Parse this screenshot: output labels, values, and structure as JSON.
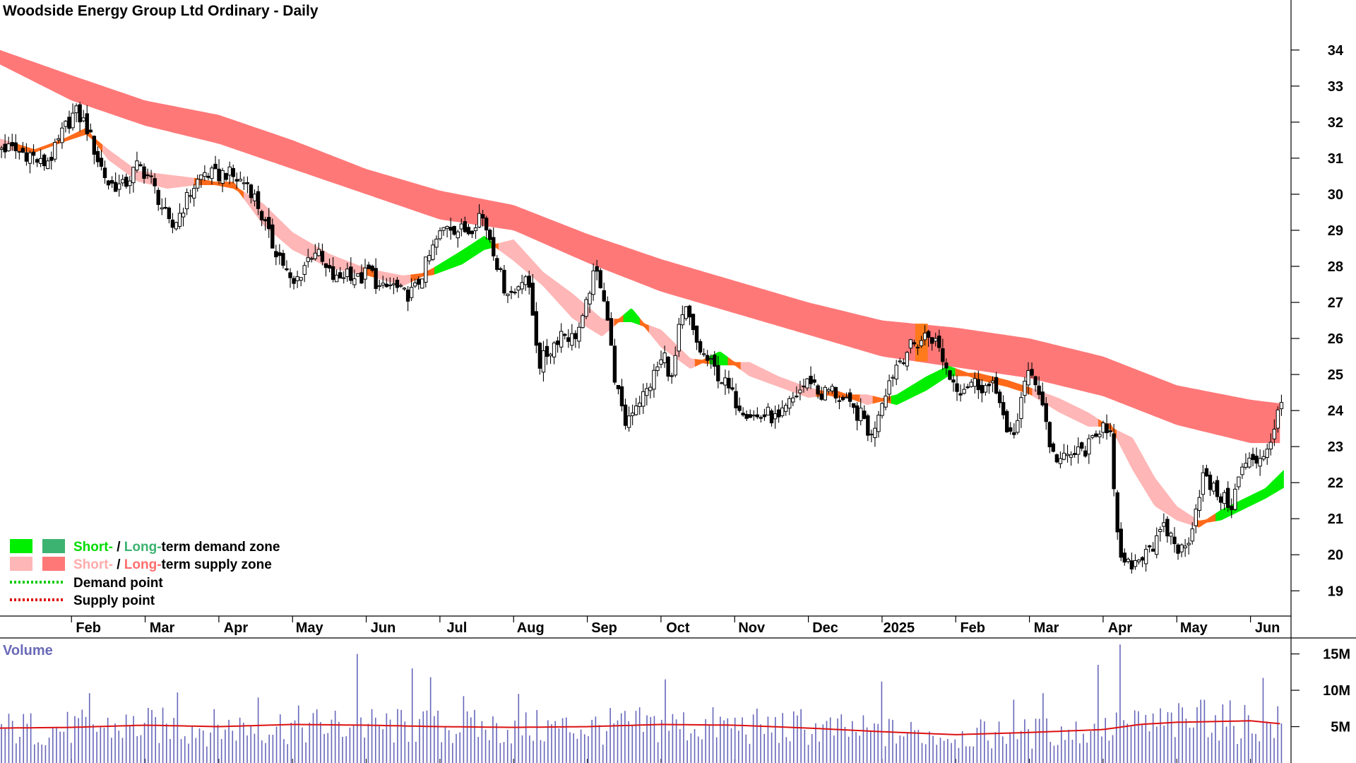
{
  "chart_data": {
    "type": "candlestick",
    "title": "Woodside Energy Group Ltd Ordinary - Daily",
    "y_ticks": [
      19,
      20,
      21,
      22,
      23,
      24,
      25,
      26,
      27,
      28,
      29,
      30,
      31,
      32,
      33,
      34
    ],
    "ylim": [
      18.3,
      34.8
    ],
    "x_ticks": [
      "Feb",
      "Mar",
      "Apr",
      "May",
      "Jun",
      "Jul",
      "Aug",
      "Sep",
      "Oct",
      "Nov",
      "Dec",
      "2025",
      "Feb",
      "Mar",
      "Apr",
      "May",
      "Jun"
    ],
    "x_tick_months": [
      1,
      2,
      3,
      4,
      5,
      6,
      7,
      8,
      9,
      10,
      11,
      12,
      13,
      14,
      15,
      16,
      17
    ],
    "xlim_months": [
      0.03,
      17.55
    ],
    "price_series": [
      {
        "m": 0.05,
        "c": 31.3
      },
      {
        "m": 0.25,
        "c": 31.2
      },
      {
        "m": 0.45,
        "c": 31.1
      },
      {
        "m": 0.6,
        "c": 30.8
      },
      {
        "m": 0.75,
        "c": 31.1
      },
      {
        "m": 0.9,
        "c": 31.8
      },
      {
        "m": 1.05,
        "c": 32.3
      },
      {
        "m": 1.2,
        "c": 31.9
      },
      {
        "m": 1.35,
        "c": 31.0
      },
      {
        "m": 1.5,
        "c": 30.3
      },
      {
        "m": 1.7,
        "c": 30.2
      },
      {
        "m": 1.9,
        "c": 30.8
      },
      {
        "m": 2.05,
        "c": 30.5
      },
      {
        "m": 2.2,
        "c": 29.8
      },
      {
        "m": 2.35,
        "c": 29.0
      },
      {
        "m": 2.5,
        "c": 29.6
      },
      {
        "m": 2.65,
        "c": 30.2
      },
      {
        "m": 2.8,
        "c": 30.6
      },
      {
        "m": 2.95,
        "c": 30.5
      },
      {
        "m": 3.1,
        "c": 30.6
      },
      {
        "m": 3.25,
        "c": 30.4
      },
      {
        "m": 3.4,
        "c": 30.3
      },
      {
        "m": 3.55,
        "c": 29.6
      },
      {
        "m": 3.7,
        "c": 28.7
      },
      {
        "m": 3.85,
        "c": 28.2
      },
      {
        "m": 4.0,
        "c": 27.4
      },
      {
        "m": 4.15,
        "c": 28.0
      },
      {
        "m": 4.3,
        "c": 28.5
      },
      {
        "m": 4.45,
        "c": 27.9
      },
      {
        "m": 4.6,
        "c": 27.6
      },
      {
        "m": 4.75,
        "c": 27.9
      },
      {
        "m": 4.9,
        "c": 27.6
      },
      {
        "m": 5.05,
        "c": 27.9
      },
      {
        "m": 5.2,
        "c": 27.3
      },
      {
        "m": 5.35,
        "c": 27.5
      },
      {
        "m": 5.5,
        "c": 27.2
      },
      {
        "m": 5.65,
        "c": 27.3
      },
      {
        "m": 5.8,
        "c": 28.0
      },
      {
        "m": 5.95,
        "c": 28.7
      },
      {
        "m": 6.1,
        "c": 29.2
      },
      {
        "m": 6.25,
        "c": 29.0
      },
      {
        "m": 6.4,
        "c": 29.0
      },
      {
        "m": 6.55,
        "c": 29.5
      },
      {
        "m": 6.7,
        "c": 28.7
      },
      {
        "m": 6.85,
        "c": 27.5
      },
      {
        "m": 7.0,
        "c": 27.2
      },
      {
        "m": 7.15,
        "c": 27.9
      },
      {
        "m": 7.25,
        "c": 26.8
      },
      {
        "m": 7.35,
        "c": 25.3
      },
      {
        "m": 7.5,
        "c": 25.7
      },
      {
        "m": 7.65,
        "c": 26.2
      },
      {
        "m": 7.8,
        "c": 26.0
      },
      {
        "m": 7.95,
        "c": 26.5
      },
      {
        "m": 8.05,
        "c": 27.6
      },
      {
        "m": 8.15,
        "c": 27.8
      },
      {
        "m": 8.25,
        "c": 27.0
      },
      {
        "m": 8.35,
        "c": 25.2
      },
      {
        "m": 8.5,
        "c": 23.6
      },
      {
        "m": 8.65,
        "c": 24.2
      },
      {
        "m": 8.8,
        "c": 24.5
      },
      {
        "m": 8.95,
        "c": 25.2
      },
      {
        "m": 9.05,
        "c": 25.5
      },
      {
        "m": 9.15,
        "c": 24.8
      },
      {
        "m": 9.25,
        "c": 26.3
      },
      {
        "m": 9.35,
        "c": 26.8
      },
      {
        "m": 9.45,
        "c": 26.0
      },
      {
        "m": 9.55,
        "c": 25.6
      },
      {
        "m": 9.7,
        "c": 25.2
      },
      {
        "m": 9.85,
        "c": 24.8
      },
      {
        "m": 10.0,
        "c": 24.3
      },
      {
        "m": 10.15,
        "c": 24.0
      },
      {
        "m": 10.3,
        "c": 23.8
      },
      {
        "m": 10.45,
        "c": 23.9
      },
      {
        "m": 10.6,
        "c": 23.7
      },
      {
        "m": 10.75,
        "c": 24.2
      },
      {
        "m": 10.9,
        "c": 24.6
      },
      {
        "m": 11.05,
        "c": 24.9
      },
      {
        "m": 11.15,
        "c": 24.4
      },
      {
        "m": 11.3,
        "c": 24.6
      },
      {
        "m": 11.45,
        "c": 24.3
      },
      {
        "m": 11.6,
        "c": 24.0
      },
      {
        "m": 11.75,
        "c": 23.8
      },
      {
        "m": 11.85,
        "c": 23.2
      },
      {
        "m": 11.95,
        "c": 24.0
      },
      {
        "m": 12.05,
        "c": 24.6
      },
      {
        "m": 12.2,
        "c": 25.3
      },
      {
        "m": 12.35,
        "c": 25.7
      },
      {
        "m": 12.5,
        "c": 25.9
      },
      {
        "m": 12.6,
        "c": 26.1
      },
      {
        "m": 12.7,
        "c": 26.0
      },
      {
        "m": 12.8,
        "c": 25.6
      },
      {
        "m": 12.9,
        "c": 25.0
      },
      {
        "m": 13.05,
        "c": 24.6
      },
      {
        "m": 13.2,
        "c": 24.8
      },
      {
        "m": 13.35,
        "c": 24.7
      },
      {
        "m": 13.5,
        "c": 24.6
      },
      {
        "m": 13.6,
        "c": 24.4
      },
      {
        "m": 13.7,
        "c": 23.2
      },
      {
        "m": 13.8,
        "c": 23.3
      },
      {
        "m": 13.9,
        "c": 24.6
      },
      {
        "m": 14.0,
        "c": 25.0
      },
      {
        "m": 14.1,
        "c": 24.8
      },
      {
        "m": 14.2,
        "c": 24.0
      },
      {
        "m": 14.3,
        "c": 22.8
      },
      {
        "m": 14.45,
        "c": 22.6
      },
      {
        "m": 14.6,
        "c": 22.8
      },
      {
        "m": 14.75,
        "c": 22.9
      },
      {
        "m": 14.9,
        "c": 23.2
      },
      {
        "m": 15.0,
        "c": 23.8
      },
      {
        "m": 15.1,
        "c": 23.3
      },
      {
        "m": 15.15,
        "c": 21.5
      },
      {
        "m": 15.2,
        "c": 20.3
      },
      {
        "m": 15.3,
        "c": 19.6
      },
      {
        "m": 15.4,
        "c": 19.8
      },
      {
        "m": 15.5,
        "c": 19.9
      },
      {
        "m": 15.6,
        "c": 20.3
      },
      {
        "m": 15.7,
        "c": 20.2
      },
      {
        "m": 15.8,
        "c": 20.7
      },
      {
        "m": 15.9,
        "c": 20.6
      },
      {
        "m": 16.0,
        "c": 20.2
      },
      {
        "m": 16.1,
        "c": 20.1
      },
      {
        "m": 16.15,
        "c": 20.4
      },
      {
        "m": 16.25,
        "c": 21.2
      },
      {
        "m": 16.35,
        "c": 22.2
      },
      {
        "m": 16.45,
        "c": 21.9
      },
      {
        "m": 16.55,
        "c": 21.7
      },
      {
        "m": 16.65,
        "c": 21.5
      },
      {
        "m": 16.75,
        "c": 21.4
      },
      {
        "m": 16.85,
        "c": 22.2
      },
      {
        "m": 16.95,
        "c": 22.6
      },
      {
        "m": 17.05,
        "c": 22.5
      },
      {
        "m": 17.15,
        "c": 22.8
      },
      {
        "m": 17.25,
        "c": 23.0
      },
      {
        "m": 17.35,
        "c": 23.8
      },
      {
        "m": 17.4,
        "c": 24.1
      }
    ],
    "long_term_zone": {
      "months": [
        0.03,
        1.0,
        2.0,
        3.0,
        4.0,
        5.0,
        6.0,
        7.0,
        8.0,
        9.0,
        10.0,
        11.0,
        12.0,
        13.0,
        14.0,
        15.0,
        16.0,
        17.0,
        17.4
      ],
      "upper": [
        34.0,
        33.3,
        32.6,
        32.2,
        31.5,
        30.7,
        30.1,
        29.7,
        28.9,
        28.2,
        27.6,
        27.0,
        26.5,
        26.3,
        26.0,
        25.5,
        24.7,
        24.3,
        24.2
      ],
      "lower": [
        33.6,
        32.6,
        31.9,
        31.4,
        30.7,
        30.0,
        29.3,
        29.0,
        28.1,
        27.3,
        26.7,
        26.1,
        25.5,
        25.2,
        24.9,
        24.4,
        23.6,
        23.1,
        23.1
      ]
    },
    "short_term_zone": {
      "months": [
        0.03,
        0.5,
        0.9,
        1.2,
        1.5,
        1.9,
        2.3,
        2.7,
        3.2,
        3.6,
        4.0,
        4.5,
        5.0,
        5.5,
        5.9,
        6.3,
        6.6,
        7.0,
        7.4,
        7.8,
        8.2,
        8.6,
        9.0,
        9.4,
        9.8,
        10.2,
        10.6,
        11.0,
        11.4,
        11.8,
        12.2,
        12.6,
        12.9,
        13.3,
        13.7,
        14.0,
        14.4,
        14.8,
        15.1,
        15.4,
        15.7,
        16.0,
        16.3,
        16.6,
        16.9,
        17.2,
        17.45
      ],
      "a": [
        31.3,
        31.2,
        31.5,
        31.8,
        31.0,
        30.4,
        30.2,
        30.3,
        30.3,
        29.2,
        28.5,
        28.0,
        27.8,
        27.5,
        27.9,
        28.4,
        28.8,
        28.2,
        27.5,
        26.6,
        26.1,
        26.8,
        25.8,
        25.2,
        25.6,
        25.0,
        24.7,
        24.4,
        24.5,
        24.2,
        24.4,
        24.9,
        25.2,
        24.9,
        24.7,
        24.5,
        24.0,
        23.6,
        23.6,
        22.4,
        21.4,
        21.0,
        20.8,
        21.2,
        21.5,
        21.8,
        22.3
      ],
      "b": [
        31.5,
        31.2,
        31.5,
        31.7,
        31.2,
        30.6,
        30.5,
        30.4,
        30.2,
        29.7,
        28.9,
        28.3,
        27.9,
        27.7,
        27.8,
        28.1,
        28.5,
        28.7,
        27.8,
        27.2,
        26.5,
        26.5,
        26.2,
        25.4,
        25.3,
        25.3,
        24.9,
        24.6,
        24.4,
        24.4,
        24.2,
        24.6,
        25.0,
        25.0,
        24.8,
        24.6,
        24.3,
        23.9,
        23.5,
        23.2,
        22.1,
        21.3,
        20.9,
        21.0,
        21.3,
        21.6,
        21.9
      ]
    },
    "volume": {
      "y_ticks": [
        5000000,
        10000000,
        15000000
      ],
      "y_tick_labels": [
        "5M",
        "10M",
        "15M"
      ],
      "ylim": [
        0,
        17000000
      ],
      "bar_count": 350,
      "average_line": {
        "months": [
          0.03,
          1.0,
          2.0,
          3.0,
          4.0,
          5.0,
          6.0,
          7.0,
          8.0,
          9.0,
          10.0,
          11.0,
          12.0,
          12.5,
          13.0,
          14.0,
          15.0,
          15.5,
          16.0,
          16.5,
          17.0,
          17.4
        ],
        "values": [
          4800000,
          4900000,
          5200000,
          5000000,
          5300000,
          5200000,
          5000000,
          4900000,
          5000000,
          5300000,
          5200000,
          4800000,
          4300000,
          4100000,
          3900000,
          4200000,
          4600000,
          5300000,
          5600000,
          5700000,
          5800000,
          5400000
        ]
      },
      "spikes": [
        {
          "m": 4.9,
          "v": 15000000
        },
        {
          "m": 5.6,
          "v": 13000000
        },
        {
          "m": 5.85,
          "v": 11800000
        },
        {
          "m": 2.45,
          "v": 9700000
        },
        {
          "m": 3.55,
          "v": 9000000
        },
        {
          "m": 7.05,
          "v": 9500000
        },
        {
          "m": 9.05,
          "v": 11500000
        },
        {
          "m": 12.0,
          "v": 11200000
        },
        {
          "m": 13.8,
          "v": 8700000
        },
        {
          "m": 14.2,
          "v": 9600000
        },
        {
          "m": 14.95,
          "v": 13500000
        },
        {
          "m": 15.25,
          "v": 16300000
        },
        {
          "m": 17.15,
          "v": 11700000
        },
        {
          "m": 16.35,
          "v": 8700000
        },
        {
          "m": 1.25,
          "v": 9600000
        },
        {
          "m": 6.3,
          "v": 9200000
        },
        {
          "m": 10.9,
          "v": 7400000
        }
      ]
    },
    "legend": [
      {
        "swatches": [
          "#00ee00",
          "#3cb371"
        ],
        "parts": [
          {
            "text": "Short-",
            "color": "#00dd00"
          },
          {
            "text": " / ",
            "color": "#000000"
          },
          {
            "text": "Long-",
            "color": "#3cb371"
          },
          {
            "text": "term demand zone",
            "color": "#000000"
          }
        ]
      },
      {
        "swatches": [
          "#ffb6b6",
          "#ff7878"
        ],
        "parts": [
          {
            "text": "Short-",
            "color": "#ffaaaa"
          },
          {
            "text": " / ",
            "color": "#000000"
          },
          {
            "text": "Long-",
            "color": "#ff6e6e"
          },
          {
            "text": "term supply zone",
            "color": "#000000"
          }
        ]
      },
      {
        "dotted": "#00cc00",
        "parts": [
          {
            "text": "Demand point",
            "color": "#000000"
          }
        ]
      },
      {
        "dotted": "#dd0000",
        "parts": [
          {
            "text": "Supply point",
            "color": "#000000"
          }
        ]
      }
    ],
    "volume_label": "Volume",
    "colors": {
      "long_supply": "#ff7878",
      "long_supply_highlight": "#ff7a1a",
      "short_supply": "#ffb6b6",
      "short_demand": "#00ee00",
      "transition": "#ff6a1a",
      "candle": "#000000",
      "volume_bar": "#6666bb",
      "volume_avg": "#dd1111"
    }
  }
}
